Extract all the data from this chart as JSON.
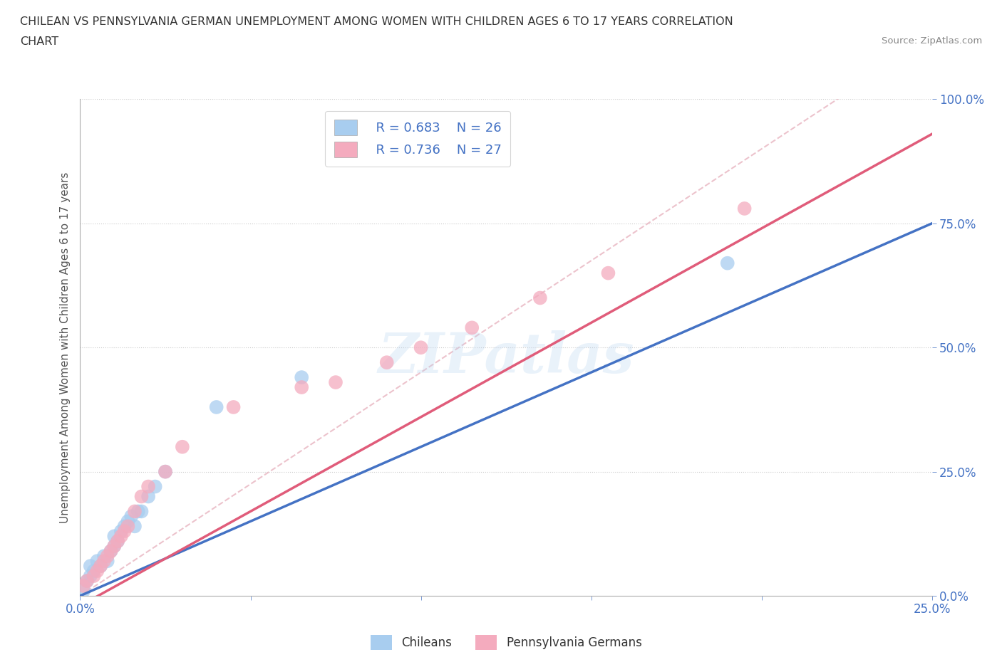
{
  "title_line1": "CHILEAN VS PENNSYLVANIA GERMAN UNEMPLOYMENT AMONG WOMEN WITH CHILDREN AGES 6 TO 17 YEARS CORRELATION",
  "title_line2": "CHART",
  "source": "Source: ZipAtlas.com",
  "ylabel": "Unemployment Among Women with Children Ages 6 to 17 years",
  "xlim": [
    0,
    0.25
  ],
  "ylim": [
    0,
    1.0
  ],
  "xticks": [
    0.0,
    0.05,
    0.1,
    0.15,
    0.2,
    0.25
  ],
  "yticks": [
    0.0,
    0.25,
    0.5,
    0.75,
    1.0
  ],
  "xtick_labels": [
    "0.0%",
    "",
    "",
    "",
    "",
    "25.0%"
  ],
  "ytick_labels": [
    "0.0%",
    "25.0%",
    "50.0%",
    "75.0%",
    "100.0%"
  ],
  "watermark": "ZIPatlas",
  "blue_R": 0.683,
  "blue_N": 26,
  "pink_R": 0.736,
  "pink_N": 27,
  "blue_color": "#A8CDEF",
  "pink_color": "#F4ABBE",
  "blue_line_color": "#4472C4",
  "pink_line_color": "#E05C7A",
  "ref_line_color": "#E8B4C0",
  "legend_text_color": "#4472C4",
  "axis_label_color": "#4472C4",
  "title_color": "#333333",
  "source_color": "#888888",
  "grid_color": "#CCCCCC",
  "blue_line_slope": 3.0,
  "blue_line_intercept": 0.0,
  "pink_line_slope": 3.8,
  "pink_line_intercept": -0.02,
  "ref_line_slope": 4.5,
  "ref_line_intercept": 0.0,
  "chileans_x": [
    0.001,
    0.002,
    0.003,
    0.003,
    0.004,
    0.005,
    0.006,
    0.007,
    0.008,
    0.009,
    0.01,
    0.01,
    0.011,
    0.012,
    0.013,
    0.014,
    0.015,
    0.016,
    0.017,
    0.018,
    0.02,
    0.022,
    0.025,
    0.04,
    0.065,
    0.19
  ],
  "chileans_y": [
    0.01,
    0.03,
    0.04,
    0.06,
    0.05,
    0.07,
    0.06,
    0.08,
    0.07,
    0.09,
    0.1,
    0.12,
    0.11,
    0.13,
    0.14,
    0.15,
    0.16,
    0.14,
    0.17,
    0.17,
    0.2,
    0.22,
    0.25,
    0.38,
    0.44,
    0.67
  ],
  "penn_x": [
    0.001,
    0.002,
    0.004,
    0.005,
    0.006,
    0.007,
    0.008,
    0.009,
    0.01,
    0.011,
    0.012,
    0.013,
    0.014,
    0.016,
    0.018,
    0.02,
    0.025,
    0.03,
    0.045,
    0.065,
    0.075,
    0.09,
    0.1,
    0.115,
    0.135,
    0.155,
    0.195
  ],
  "penn_y": [
    0.02,
    0.03,
    0.04,
    0.05,
    0.06,
    0.07,
    0.08,
    0.09,
    0.1,
    0.11,
    0.12,
    0.13,
    0.14,
    0.17,
    0.2,
    0.22,
    0.25,
    0.3,
    0.38,
    0.42,
    0.43,
    0.47,
    0.5,
    0.54,
    0.6,
    0.65,
    0.78
  ]
}
